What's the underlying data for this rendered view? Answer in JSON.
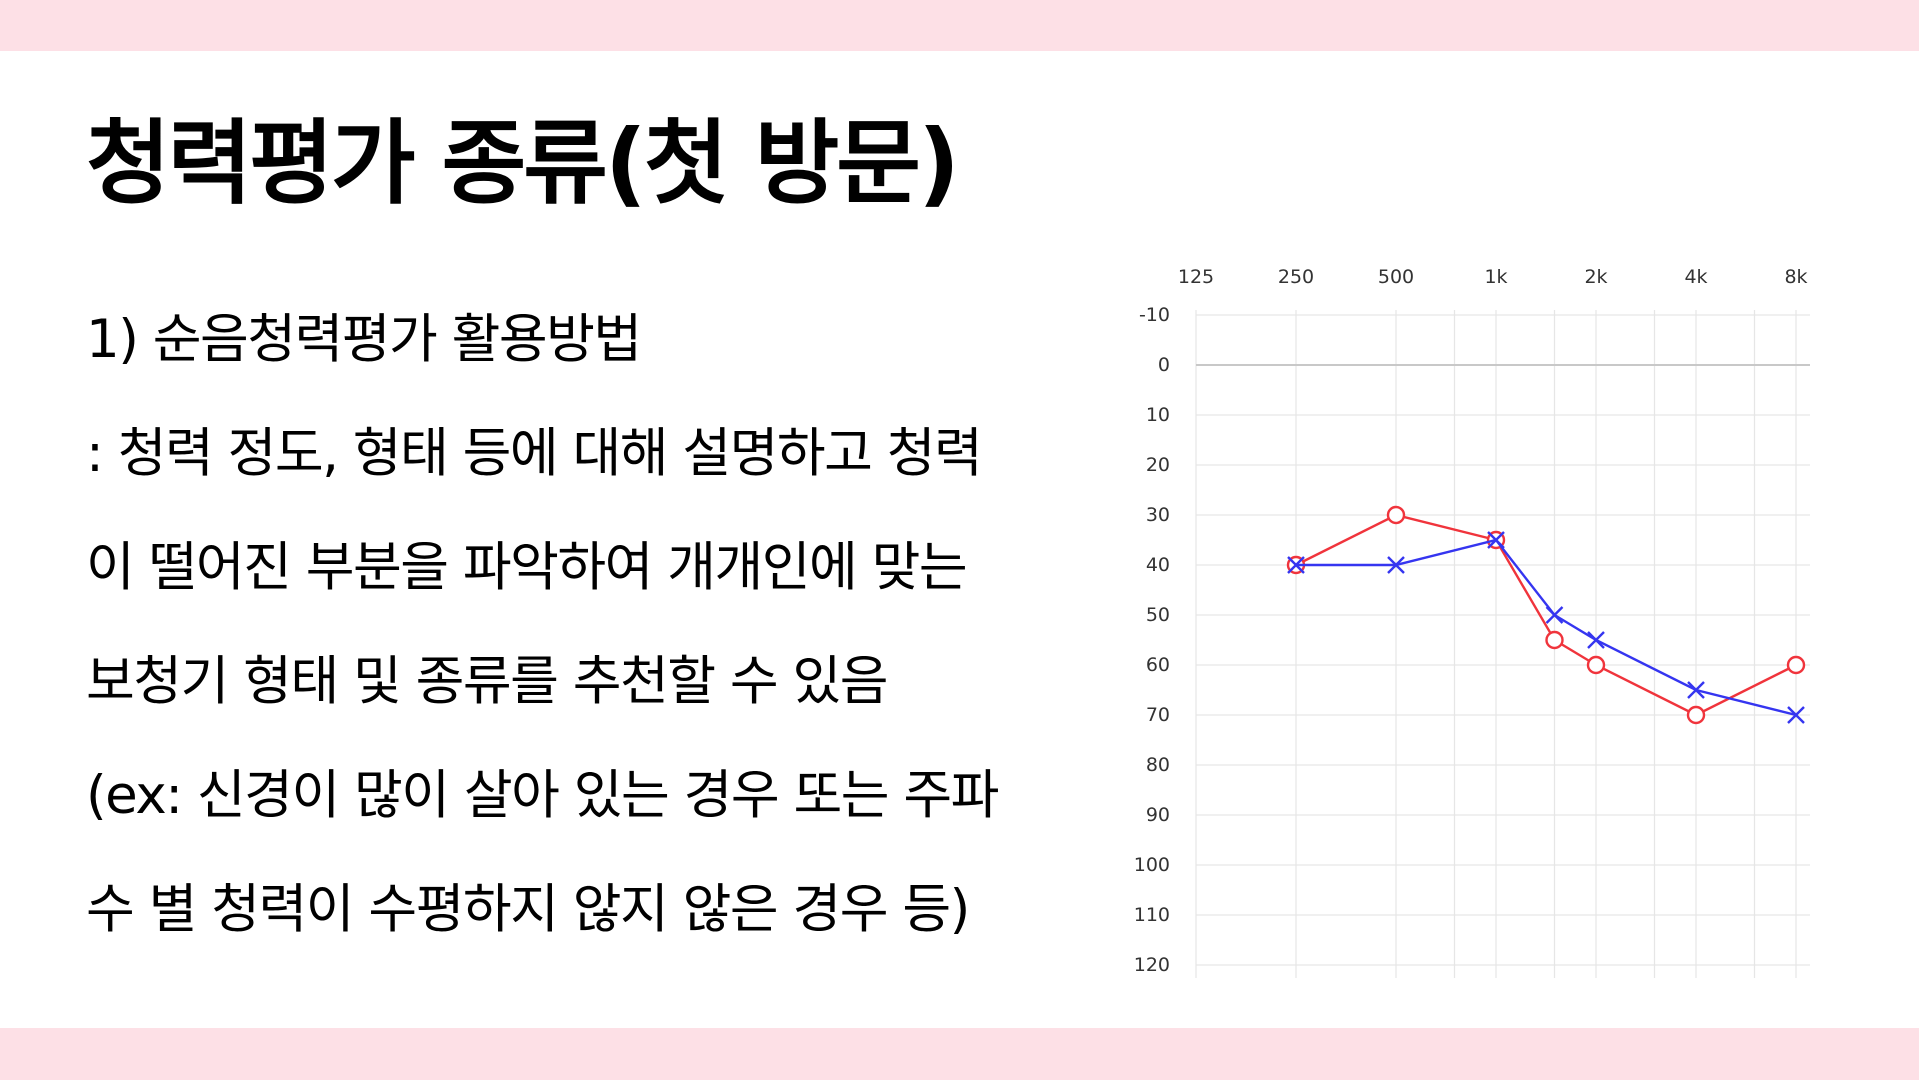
{
  "slide": {
    "title": "청력평가 종류(첫 방문)",
    "lines": [
      "1) 순음청력평가 활용방법",
      ": 청력 정도, 형태 등에 대해 설명하고 청력",
      "이 떨어진 부분을 파악하여 개개인에 맞는",
      "보청기 형태 및 종류를 추천할 수 있음",
      "(ex: 신경이 많이 살아 있는 경우 또는 주파",
      "수 별 청력이 수평하지 않지 않은 경우 등)"
    ],
    "colors": {
      "band": "#fde0e6",
      "right_ear": "#f0343c",
      "left_ear": "#3535f0"
    }
  },
  "chart_data": {
    "type": "line",
    "x_ticks": [
      "125",
      "250",
      "500",
      "1k",
      "2k",
      "4k",
      "8k"
    ],
    "y_ticks": [
      "-10",
      "0",
      "10",
      "20",
      "30",
      "40",
      "50",
      "60",
      "70",
      "80",
      "90",
      "100",
      "110",
      "120"
    ],
    "ylim": [
      -10,
      120
    ],
    "y_inverted": true,
    "x_scale": "log",
    "grid": true,
    "series": [
      {
        "marker": "circle",
        "color": "#f0343c",
        "points": [
          {
            "hz": 250,
            "db": 40
          },
          {
            "hz": 500,
            "db": 30
          },
          {
            "hz": 1000,
            "db": 35
          },
          {
            "hz": 1500,
            "db": 55
          },
          {
            "hz": 2000,
            "db": 60
          },
          {
            "hz": 4000,
            "db": 70
          },
          {
            "hz": 8000,
            "db": 60
          }
        ]
      },
      {
        "marker": "cross",
        "color": "#3535f0",
        "points": [
          {
            "hz": 250,
            "db": 40
          },
          {
            "hz": 500,
            "db": 40
          },
          {
            "hz": 1000,
            "db": 35
          },
          {
            "hz": 1500,
            "db": 50
          },
          {
            "hz": 2000,
            "db": 55
          },
          {
            "hz": 4000,
            "db": 65
          },
          {
            "hz": 8000,
            "db": 70
          }
        ]
      }
    ]
  }
}
